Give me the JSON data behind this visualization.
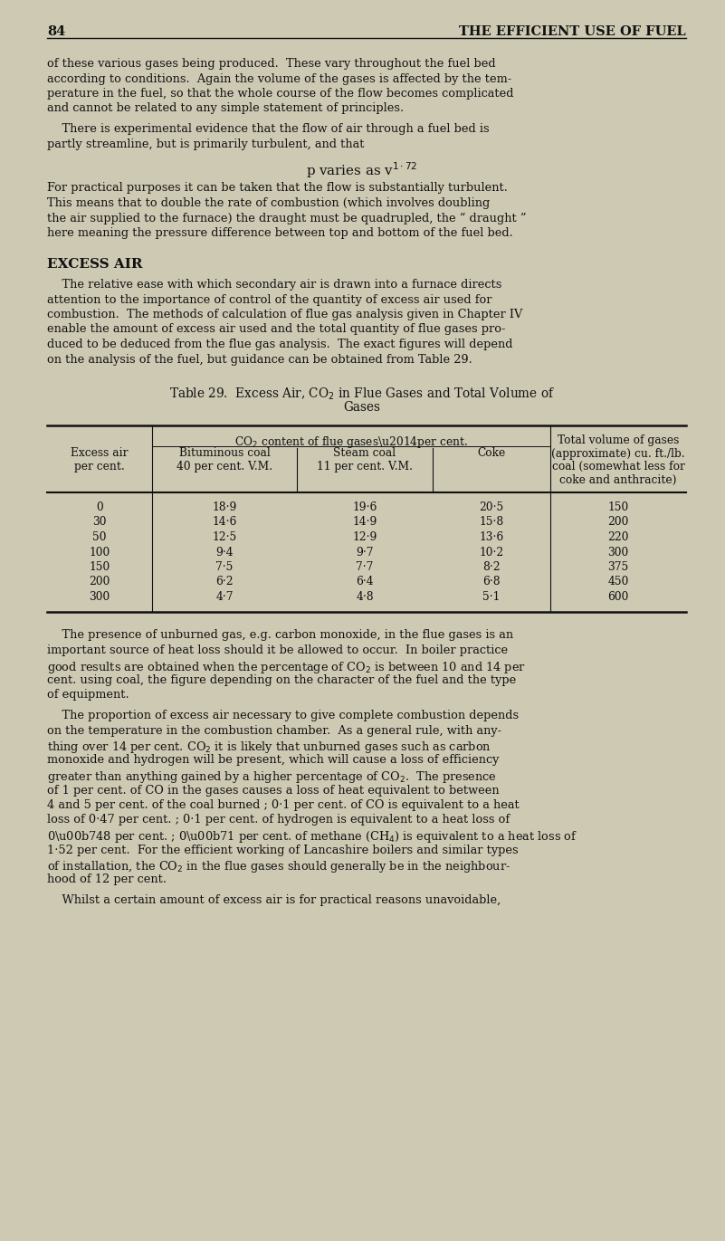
{
  "bg_color": "#cec9b3",
  "text_color": "#111111",
  "page_number": "84",
  "header_title": "THE EFFICIENT USE OF FUEL",
  "body_fontsize": 9.3,
  "header_fontsize": 10.5,
  "section_fontsize": 11.0,
  "table_fontsize": 8.8,
  "table_data": [
    [
      "0",
      "18·9",
      "19·6",
      "20·5",
      "150"
    ],
    [
      "30",
      "14·6",
      "14·9",
      "15·8",
      "200"
    ],
    [
      "50",
      "12·5",
      "12·9",
      "13·6",
      "220"
    ],
    [
      "100",
      "9·4",
      "9·7",
      "10·2",
      "300"
    ],
    [
      "150",
      "7·5",
      "7·7",
      "8·2",
      "375"
    ],
    [
      "200",
      "6·2",
      "6·4",
      "6·8",
      "450"
    ],
    [
      "300",
      "4·7",
      "4·8",
      "5·1",
      "600"
    ]
  ]
}
